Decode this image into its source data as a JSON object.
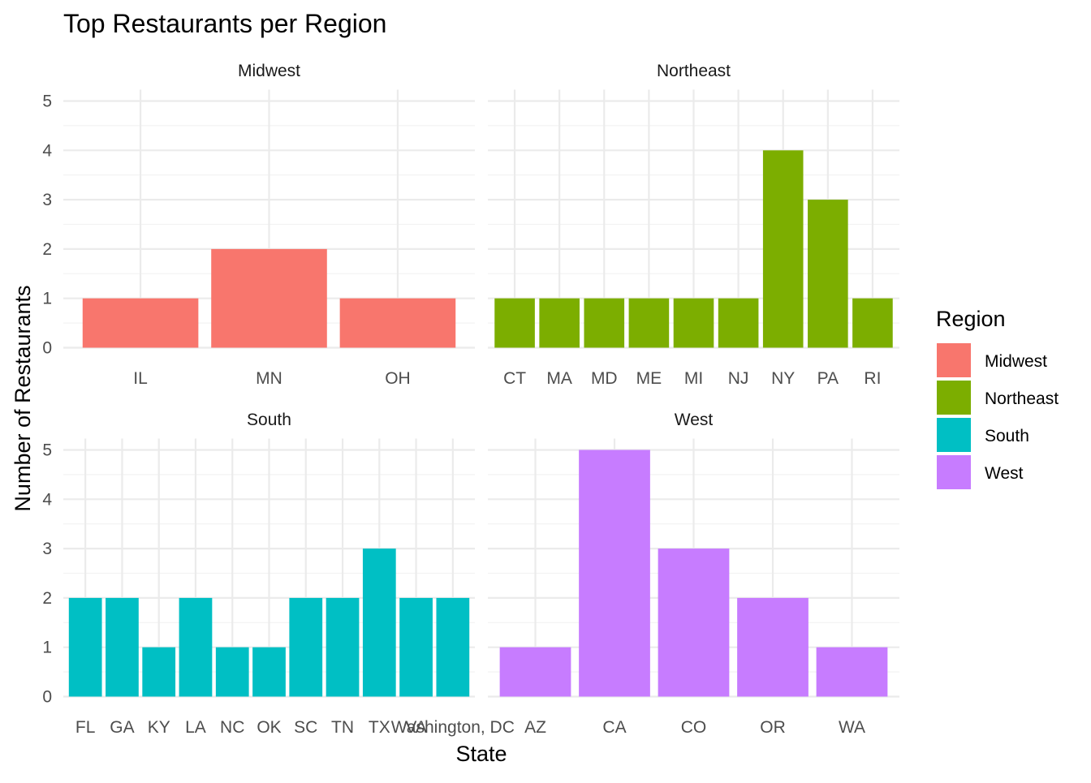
{
  "chart_data": {
    "type": "bar",
    "title": "Top Restaurants per Region",
    "xlabel": "State",
    "ylabel": "Number of Restaurants",
    "ylim": [
      0,
      5
    ],
    "y_ticks": [
      0,
      1,
      2,
      3,
      4,
      5
    ],
    "grid": true,
    "facet_by": "Region",
    "legend": {
      "title": "Region",
      "placement": "right",
      "entries": [
        {
          "name": "Midwest",
          "color": "#F8766D"
        },
        {
          "name": "Northeast",
          "color": "#7CAE00"
        },
        {
          "name": "South",
          "color": "#00BFC4"
        },
        {
          "name": "West",
          "color": "#C77CFF"
        }
      ]
    },
    "panels": [
      {
        "name": "Midwest",
        "color": "#F8766D",
        "categories": [
          "IL",
          "MN",
          "OH"
        ],
        "values": [
          1,
          2,
          1
        ]
      },
      {
        "name": "Northeast",
        "color": "#7CAE00",
        "categories": [
          "CT",
          "MA",
          "MD",
          "ME",
          "MI",
          "NJ",
          "NY",
          "PA",
          "RI"
        ],
        "values": [
          1,
          1,
          1,
          1,
          1,
          1,
          4,
          3,
          1
        ]
      },
      {
        "name": "South",
        "color": "#00BFC4",
        "categories": [
          "FL",
          "GA",
          "KY",
          "LA",
          "NC",
          "OK",
          "SC",
          "TN",
          "TX",
          "VA",
          "Washington, DC"
        ],
        "values": [
          2,
          2,
          1,
          2,
          1,
          1,
          2,
          2,
          3,
          2,
          2
        ]
      },
      {
        "name": "West",
        "color": "#C77CFF",
        "categories": [
          "AZ",
          "CA",
          "CO",
          "OR",
          "WA"
        ],
        "values": [
          1,
          5,
          3,
          2,
          1
        ]
      }
    ]
  }
}
